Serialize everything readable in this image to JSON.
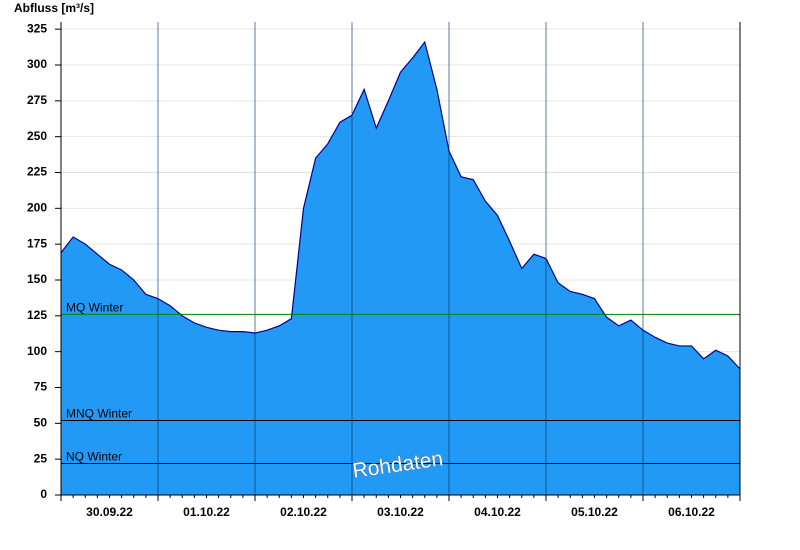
{
  "chart_data": {
    "type": "area",
    "y_label": "Abfluss [m³/s]",
    "categories": [
      null,
      null,
      null,
      null,
      "30.09.22",
      null,
      null,
      null,
      null,
      null,
      null,
      null,
      "01.10.22",
      null,
      null,
      null,
      null,
      null,
      null,
      null,
      "02.10.22",
      null,
      null,
      null,
      null,
      null,
      null,
      null,
      "03.10.22",
      null,
      null,
      null,
      null,
      null,
      null,
      null,
      "04.10.22",
      null,
      null,
      null,
      null,
      null,
      null,
      null,
      "05.10.22",
      null,
      null,
      null,
      null,
      null,
      null,
      null,
      "06.10.22",
      null,
      null,
      null,
      null
    ],
    "values": [
      169,
      180,
      175,
      168,
      161,
      157,
      150,
      140,
      137,
      132,
      125,
      120,
      117,
      115,
      114,
      114,
      113,
      115,
      118,
      123,
      200,
      235,
      245,
      260,
      265,
      283,
      256,
      275,
      295,
      305,
      316,
      283,
      240,
      222,
      220,
      205,
      195,
      177,
      158,
      168,
      165,
      148,
      142,
      140,
      137,
      124,
      118,
      122,
      115,
      110,
      106,
      104,
      104,
      95,
      101,
      97,
      88
    ],
    "color": "#2299f5",
    "ylim": [
      0,
      330
    ],
    "yticks": [
      0,
      25,
      50,
      75,
      100,
      125,
      150,
      175,
      200,
      225,
      250,
      275,
      300,
      325
    ],
    "grid": true,
    "reference_lines": [
      {
        "label": "MQ Winter",
        "value": 126,
        "color": "#008000"
      },
      {
        "label": "MNQ Winter",
        "value": 52,
        "color": "#000000"
      },
      {
        "label": "NQ Winter",
        "value": 22,
        "color": "#000000"
      }
    ],
    "annotation": "Rohdaten"
  }
}
